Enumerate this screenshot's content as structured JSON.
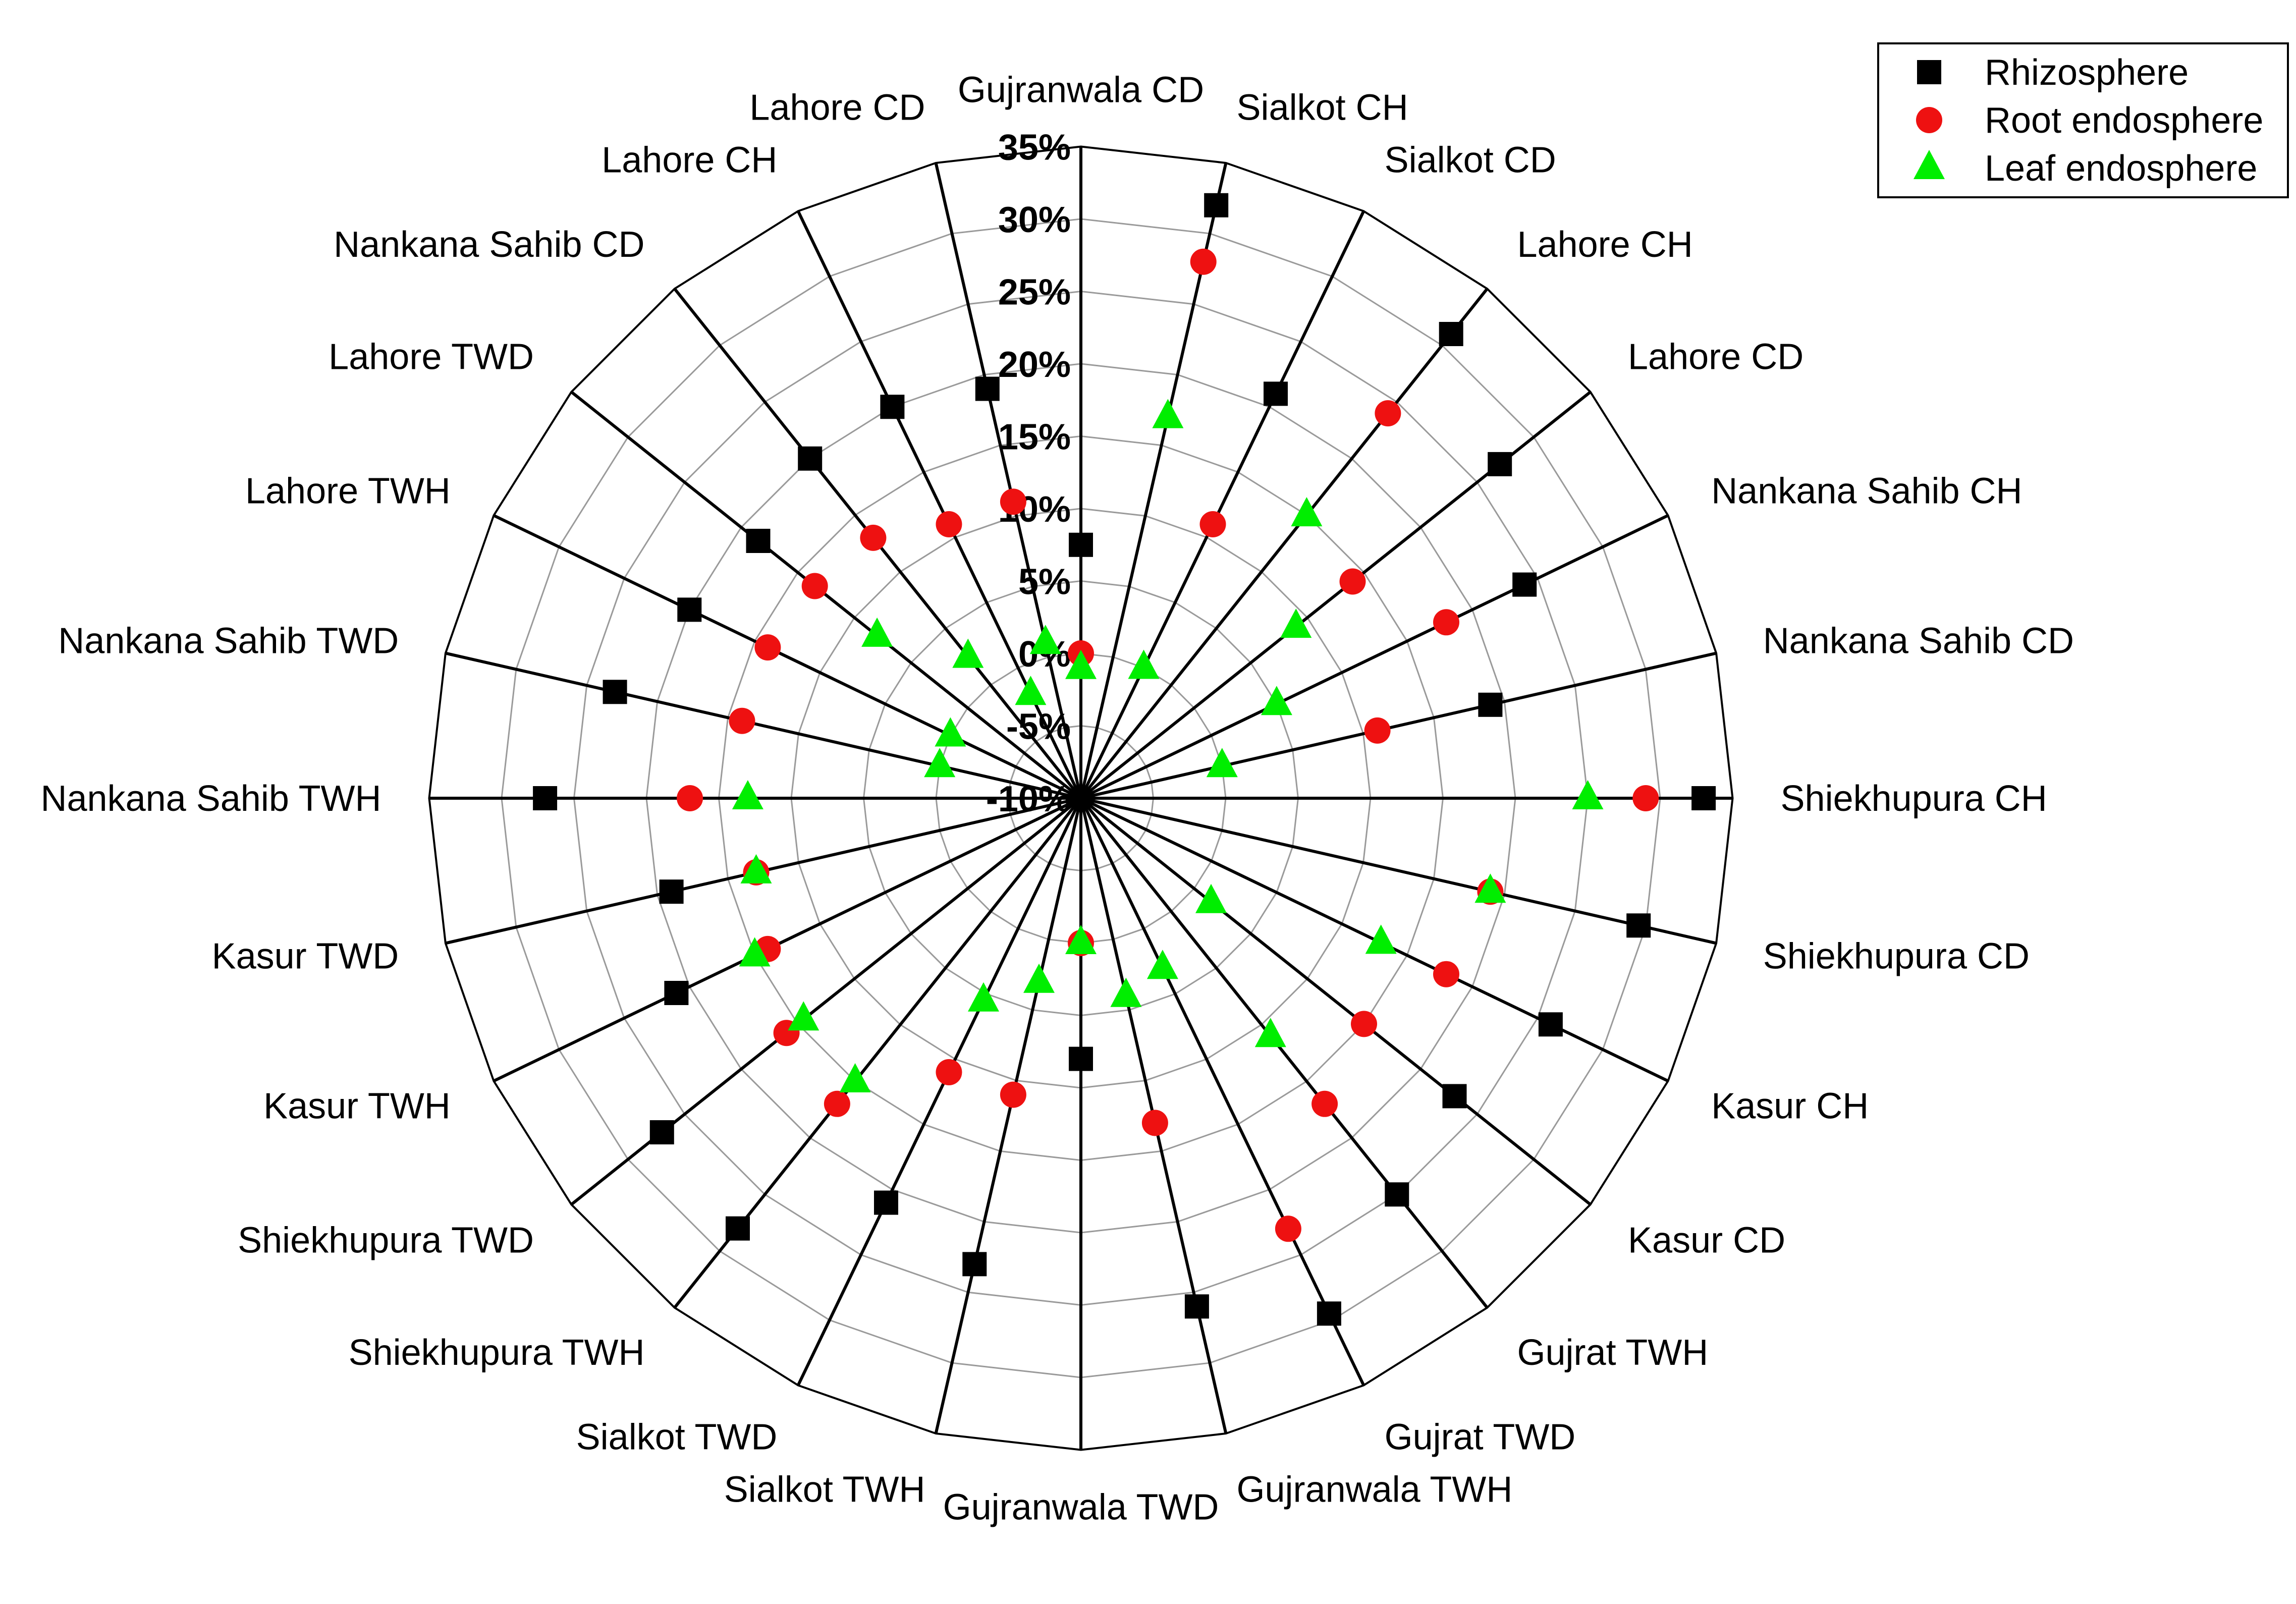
{
  "chart_data": {
    "type": "radar",
    "title": "",
    "categories": [
      "Gujranwala CD",
      "Sialkot CH",
      "Sialkot CD",
      "Lahore CH",
      "Lahore  CD",
      "Nankana Sahib CH",
      "Nankana Sahib CD",
      "Shiekhupura CH",
      "Shiekhupura CD",
      "Kasur CH",
      "Kasur CD",
      "Gujrat TWH",
      "Gujrat  TWD",
      "Gujranwala TWH",
      "Gujranwala TWD",
      "Sialkot  TWH",
      "Sialkot  TWD",
      "Shiekhupura TWH",
      "Shiekhupura  TWD",
      "Kasur TWH",
      "Kasur TWD",
      "Nankana Sahib TWH",
      "Nankana Sahib  TWD",
      "Lahore TWH",
      "Lahore TWD",
      "Nankana Sahib  CD",
      "Lahore CH",
      "Lahore CD"
    ],
    "radial_axis": {
      "min": -10,
      "max": 35,
      "step": 5,
      "tick_labels": [
        "-10%",
        "-5%",
        "0%",
        "5%",
        "10%",
        "15%",
        "20%",
        "25%",
        "30%",
        "35%"
      ],
      "grid": true
    },
    "legend_position": "top-right",
    "series": [
      {
        "name": "Rhizosphere",
        "marker": "square",
        "color": "#000000",
        "values": [
          7.5,
          32,
          21,
          31,
          27,
          24,
          19,
          33,
          29.5,
          26,
          23,
          25,
          29.5,
          26,
          8,
          23,
          21,
          28,
          27,
          21,
          19,
          27,
          23,
          20,
          18.5,
          20,
          20,
          19
        ]
      },
      {
        "name": "Root endosphere",
        "marker": "circle",
        "color": "#ee1111",
        "values": [
          0,
          28,
          11,
          24,
          14,
          18,
          11,
          29,
          19,
          18,
          15,
          17,
          23,
          13,
          0,
          11,
          11,
          17,
          16,
          14,
          13,
          17,
          14,
          14,
          13.5,
          13,
          11,
          11
        ]
      },
      {
        "name": "Leaf endosphere",
        "marker": "triangle",
        "color": "#00ee00",
        "values": [
          -1,
          17,
          0,
          15,
          9,
          5,
          0,
          25,
          19,
          13,
          1.5,
          11,
          3,
          4,
          0,
          3,
          5.5,
          15,
          14.5,
          15,
          13,
          13,
          0,
          0,
          8,
          2.5,
          -2,
          1
        ]
      }
    ]
  }
}
